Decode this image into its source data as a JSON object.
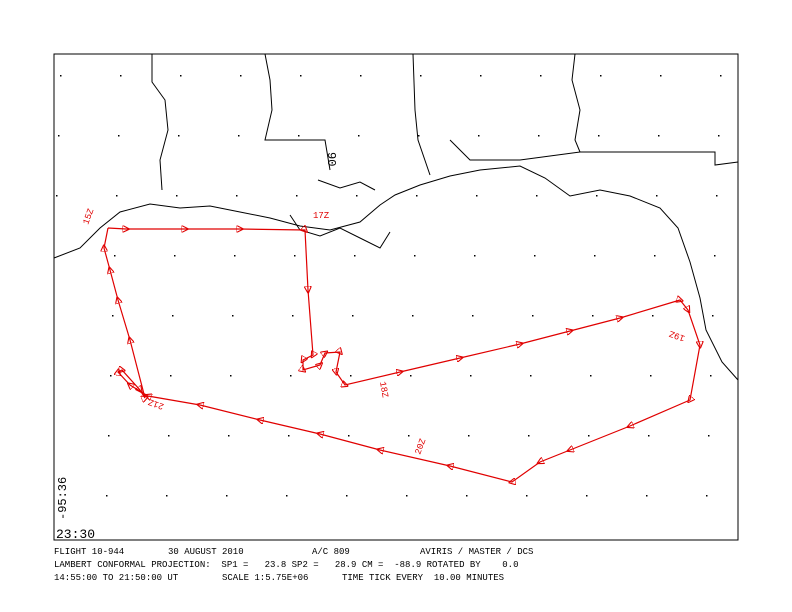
{
  "map": {
    "lon_label": "-95:36",
    "time_label": "23:30",
    "region_label": "90",
    "track_labels": [
      "15Z",
      "17Z",
      "18Z",
      "19Z",
      "20Z",
      "21Z"
    ]
  },
  "footer": {
    "line1": [
      "FLIGHT 10-944",
      "30 AUGUST 2010",
      "A/C 809",
      "AVIRIS / MASTER / DCS"
    ],
    "line2": "LAMBERT CONFORMAL PROJECTION:  SP1 =   23.8 SP2 =   28.9 CM =  -88.9 ROTATED BY    0.0",
    "line3": [
      "14:55:00 TO 21:50:00 UT",
      "SCALE 1:5.75E+06",
      "TIME TICK EVERY  10.00 MINUTES"
    ]
  }
}
